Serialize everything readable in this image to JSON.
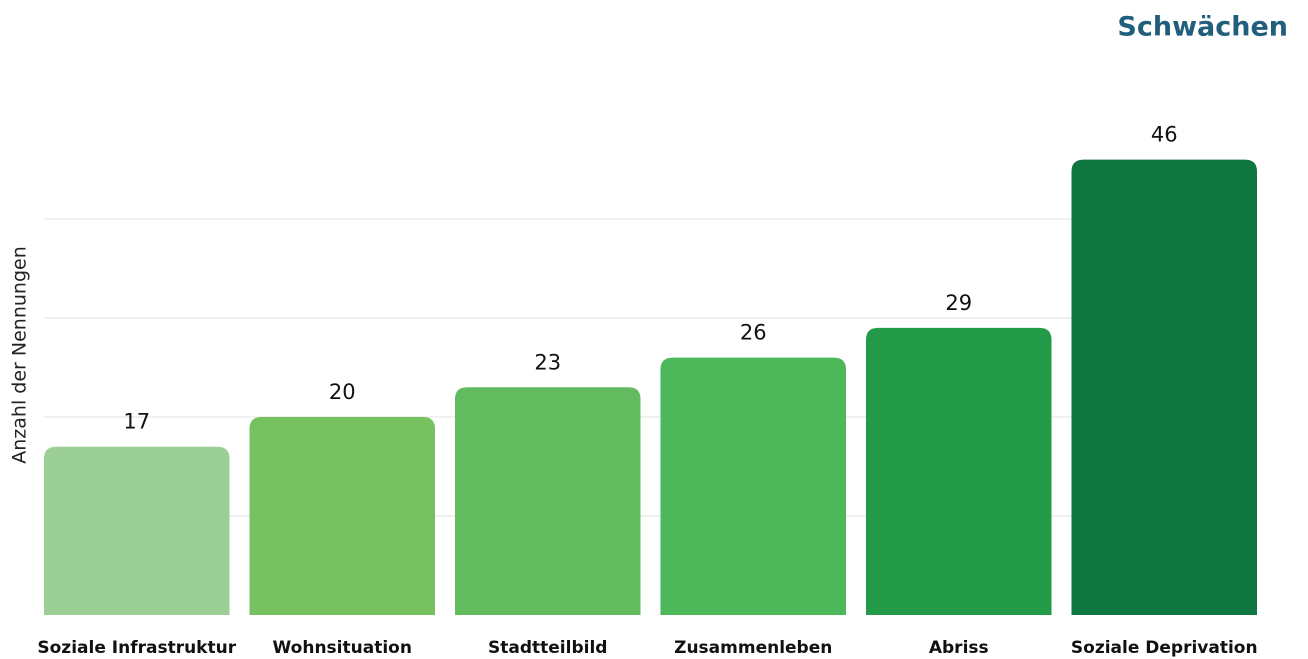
{
  "chart_data": {
    "type": "bar",
    "title": "Schwächen",
    "y_label": "Anzahl der Nennungen",
    "categories": [
      "Soziale Infrastruktur",
      "Wohnsituation",
      "Stadtteilbild",
      "Zusammenleben",
      "Abriss",
      "Soziale Deprivation"
    ],
    "values": [
      17,
      20,
      23,
      26,
      29,
      46
    ],
    "colors": [
      "#9bcf95",
      "#78c160",
      "#62bb5e",
      "#4db85a",
      "#239a48",
      "#0e763e"
    ],
    "ylim": [
      0,
      50
    ],
    "yticks": [
      10,
      20,
      30,
      40
    ],
    "grid": true
  }
}
